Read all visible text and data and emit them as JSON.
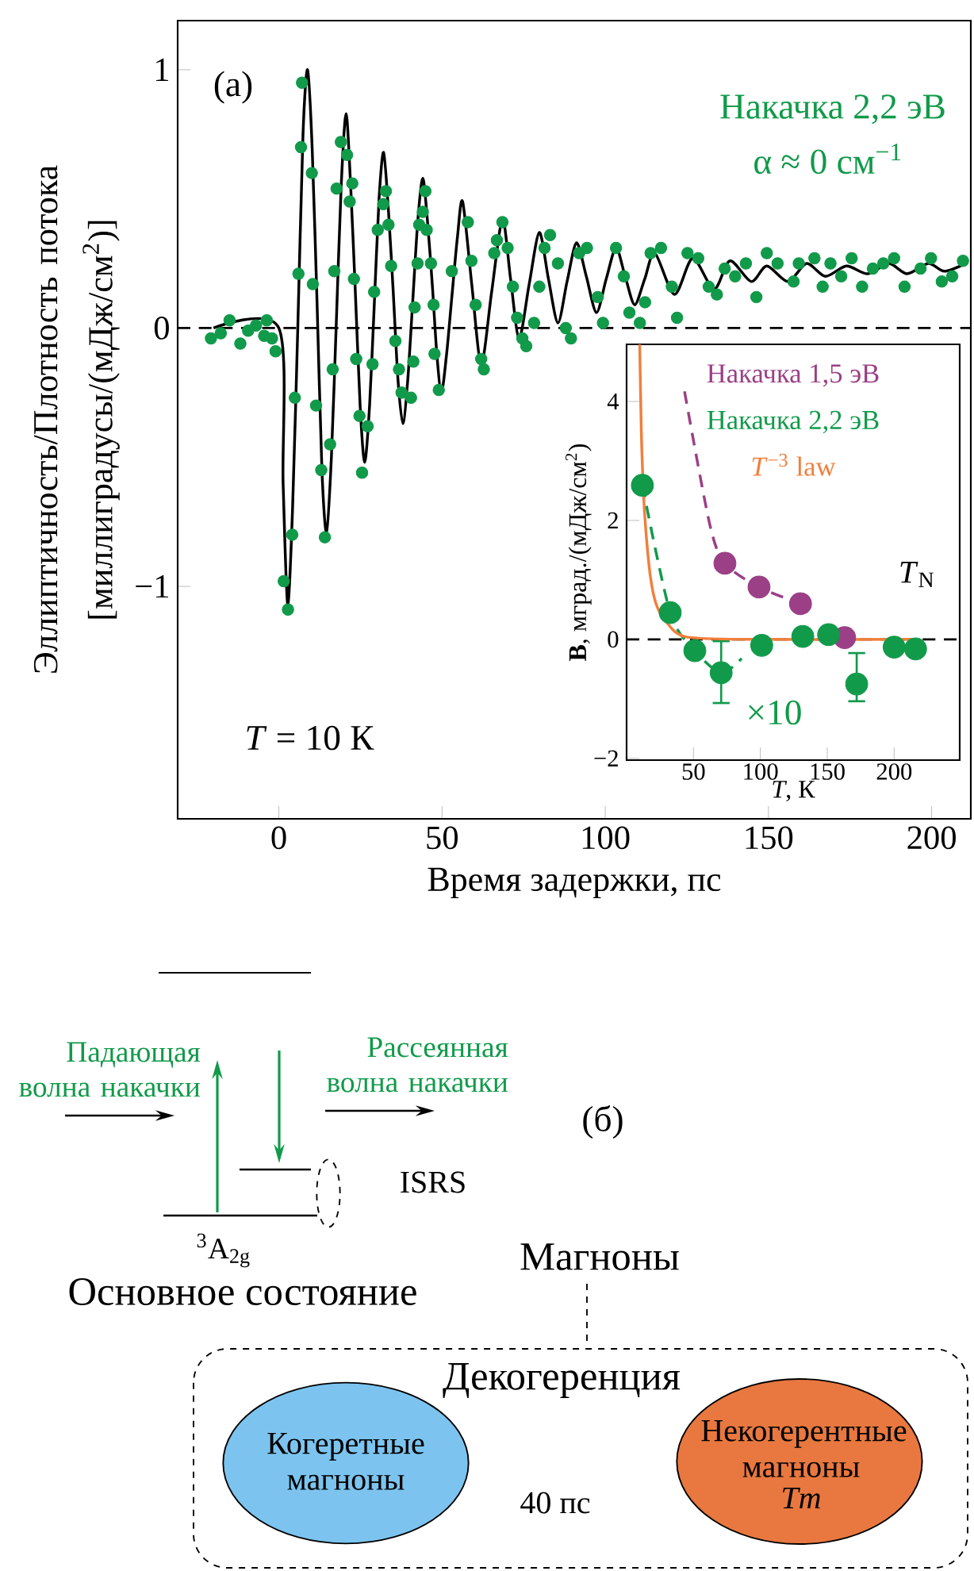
{
  "chart_data": [
    {
      "type": "scatter",
      "xlabel": "Время задержки, пс",
      "ylabel": "Эллиптичность/Плотность потока [миллиградусы/(мДж/см$^{2}$)]",
      "xlim": [
        -31,
        212
      ],
      "ylim": [
        -1.9,
        1.19
      ],
      "xticks": [
        0,
        50,
        100,
        150,
        200
      ],
      "yticks": [
        {
          "value": -1,
          "label": "−1"
        },
        0,
        1
      ],
      "legend": "top right",
      "annotations": [
        "(a)",
        "α ≈ 0 см$^{−1}$",
        "*T* = 10 К"
      ],
      "ref_lines": [
        {
          "axis": "y",
          "value": 0,
          "line_style": "dashed",
          "color": "#000000"
        }
      ],
      "series": [
        {
          "name": "Накачка 2,2 эВ",
          "type": "scatter",
          "marker": "circle",
          "color": "#119a4a",
          "x": [
            -20.8,
            -17.8,
            -15.1,
            -11.8,
            -9.4,
            -7.0,
            -4.5,
            -3.7,
            -2.1,
            -1.0,
            1.5,
            2.8,
            4.1,
            4.9,
            6.0,
            6.8,
            7.1,
            10.1,
            10.4,
            11.4,
            13.0,
            14.1,
            15.7,
            16.5,
            17.0,
            17.7,
            19.0,
            20.9,
            21.7,
            22.5,
            23.0,
            23.7,
            24.7,
            25.5,
            27.2,
            28.7,
            29.2,
            30.3,
            32.0,
            32.8,
            33.6,
            34.4,
            35.7,
            36.8,
            37.6,
            40.5,
            41.2,
            41.6,
            42.5,
            43.0,
            44.1,
            44.9,
            45.3,
            46.6,
            47.4,
            47.7,
            49.0,
            53.0,
            57.9,
            59.0,
            60.3,
            62.0,
            62.8,
            66.0,
            66.8,
            68.5,
            70.1,
            71.7,
            73.0,
            74.6,
            75.8,
            78.2,
            79.8,
            81.4,
            83.1,
            85.5,
            87.9,
            89.5,
            92.0,
            94.4,
            97.7,
            99.3,
            103.3,
            105.7,
            107.4,
            110.6,
            112.2,
            113.9,
            117.1,
            120.4,
            122.0,
            125.2,
            128.5,
            131.7,
            134.2,
            136.6,
            139.8,
            143.1,
            146.3,
            149.5,
            152.8,
            157.7,
            159.3,
            164.1,
            166.6,
            169.0,
            172.3,
            175.5,
            178.7,
            182.0,
            185.2,
            188.5,
            191.7,
            196.6,
            199.8,
            203.1,
            206.3,
            209.6
          ],
          "values": [
            -0.04,
            -0.02,
            0.03,
            -0.06,
            -0.01,
            0.01,
            -0.03,
            0.03,
            -0.04,
            -0.09,
            -0.98,
            -1.09,
            -0.8,
            -0.27,
            0.21,
            0.7,
            0.95,
            0.6,
            0.17,
            -0.3,
            -0.55,
            -0.81,
            -0.45,
            -0.16,
            0.22,
            0.54,
            0.72,
            0.67,
            0.49,
            0.56,
            0.19,
            -0.12,
            -0.34,
            -0.56,
            -0.38,
            -0.14,
            0.14,
            0.38,
            0.48,
            0.53,
            0.4,
            0.24,
            -0.05,
            -0.16,
            -0.25,
            -0.27,
            -0.13,
            0.08,
            0.25,
            0.4,
            0.45,
            0.53,
            0.38,
            0.25,
            0.09,
            -0.1,
            -0.24,
            0.22,
            0.41,
            0.26,
            0.09,
            -0.12,
            -0.16,
            0.29,
            0.34,
            0.41,
            0.31,
            0.16,
            0.04,
            -0.04,
            -0.07,
            0.02,
            0.16,
            0.31,
            0.36,
            0.25,
            0.0,
            -0.04,
            0.29,
            0.31,
            0.12,
            0.02,
            0.31,
            0.2,
            0.06,
            0.02,
            0.1,
            0.29,
            0.31,
            0.16,
            0.04,
            0.29,
            0.27,
            0.16,
            0.13,
            0.23,
            0.2,
            0.25,
            0.12,
            0.29,
            0.25,
            0.18,
            0.25,
            0.27,
            0.16,
            0.25,
            0.2,
            0.27,
            0.16,
            0.23,
            0.25,
            0.27,
            0.16,
            0.23,
            0.27,
            0.18,
            0.2,
            0.26
          ]
        },
        {
          "type": "line",
          "line_style": "solid",
          "color": "#000000",
          "x": [
            -20,
            0,
            1.3,
            2.7,
            4.2,
            5.8,
            7.4,
            8.8,
            10.2,
            11.7,
            13.2,
            14.6,
            16.1,
            17.6,
            19.1,
            20.6,
            22.0,
            23.4,
            24.9,
            26.3,
            27.8,
            29.2,
            30.7,
            32.1,
            33.6,
            35.0,
            36.5,
            38,
            39.5,
            41,
            42.6,
            44.1,
            45.5,
            47,
            48.4,
            49.8,
            51.4,
            53,
            54.7,
            56.3,
            59.1,
            62,
            65.2,
            68.5,
            71,
            73.6,
            76.7,
            79.8,
            82.6,
            85.5,
            88.3,
            91.2,
            94.2,
            97.3,
            100.3,
            103.3,
            106.1,
            109,
            112.1,
            115.2,
            121.2,
            126.8,
            133.3,
            138.2,
            144.7,
            149.5,
            156,
            161.7,
            167.4,
            173.9,
            180.4,
            186.9,
            192.5,
            199,
            203.9,
            210.4
          ],
          "values": [
            0,
            0,
            -0.6,
            -1.07,
            -0.7,
            0.0,
            0.75,
            1.0,
            0.7,
            0.1,
            -0.55,
            -0.79,
            -0.5,
            0.02,
            0.55,
            0.83,
            0.55,
            0.15,
            -0.3,
            -0.52,
            -0.3,
            0.08,
            0.5,
            0.68,
            0.45,
            0.15,
            -0.2,
            -0.37,
            -0.2,
            0.1,
            0.42,
            0.58,
            0.42,
            0.17,
            -0.1,
            -0.25,
            -0.1,
            0.12,
            0.35,
            0.49,
            0.17,
            -0.14,
            0.14,
            0.42,
            0.19,
            -0.04,
            0.17,
            0.37,
            0.19,
            0.02,
            0.18,
            0.33,
            0.2,
            0.06,
            0.19,
            0.31,
            0.2,
            0.09,
            0.19,
            0.29,
            0.13,
            0.27,
            0.15,
            0.26,
            0.18,
            0.24,
            0.18,
            0.25,
            0.2,
            0.24,
            0.21,
            0.25,
            0.21,
            0.25,
            0.22,
            0.25
          ]
        }
      ]
    },
    {
      "type": "scatter",
      "xlabel": "*T*, К",
      "ylabel": "**B**, мград./(мДж/см$^{2}$)",
      "xlim": [
        0,
        249
      ],
      "ylim": [
        -2.03,
        4.96
      ],
      "xticks": [
        50,
        100,
        150,
        200
      ],
      "yticks": [
        {
          "value": -2,
          "label": "−2"
        },
        0,
        2,
        4
      ],
      "legend": "top right",
      "annotations": [
        "*T*$_{N}$",
        "×10"
      ],
      "ref_lines": [
        {
          "axis": "y",
          "value": 0,
          "line_style": "dashed",
          "color": "#000000"
        }
      ],
      "series": [
        {
          "type": "line",
          "line_style": "dashed",
          "color": "#9b3f86",
          "x": [
            43.3,
            62,
            73.5,
            99,
            130
          ],
          "values": [
            4.17,
            1.95,
            1.28,
            0.88,
            0.6
          ]
        },
        {
          "name": "Накачка 1,5 эВ",
          "type": "scatter",
          "marker": "circle",
          "color": "#9b3f86",
          "x": [
            73.5,
            99,
            130,
            163
          ],
          "values": [
            1.28,
            0.88,
            0.6,
            0.03
          ]
        },
        {
          "type": "line",
          "line_style": "dashed",
          "color": "#119a4a",
          "x": [
            11.8,
            32.6,
            51,
            70.7,
            86
          ],
          "values": [
            2.59,
            0.45,
            -0.19,
            -0.56,
            -0.32
          ]
        },
        {
          "name": "Накачка 2,2 эВ",
          "type": "scatter",
          "marker": "circle",
          "color": "#119a4a",
          "x": [
            11.8,
            32.6,
            51,
            70.7,
            101,
            131.7,
            151,
            172,
            200,
            216
          ],
          "values": [
            2.59,
            0.45,
            -0.19,
            -0.56,
            -0.1,
            0.05,
            0.08,
            -0.75,
            -0.13,
            -0.16
          ],
          "errors": [
            null,
            null,
            null,
            [
              -1.07,
              -0.03
            ],
            null,
            null,
            null,
            [
              -1.04,
              -0.23
            ],
            null,
            null
          ]
        },
        {
          "name": "*T*$^{−3}$ law",
          "type": "line",
          "line_style": "solid",
          "color": "#f07f3c",
          "x": [
            9.8,
            11,
            12.5,
            14.5,
            17.7,
            22,
            29.5,
            45,
            100,
            216
          ],
          "values": [
            4.96,
            3.5,
            2.5,
            1.8,
            1.07,
            0.6,
            0.3,
            0.04,
            0,
            0
          ]
        }
      ]
    },
    {
      "type": "other",
      "annotations": [
        "Падающая волна накачки",
        "Рассеянная волна накачки",
        "(б)",
        "ISRS",
        "$^{3}$A$_{2g}$",
        "Основное состояние",
        "Магноны",
        "Декогеренция",
        "Когеретные магноны",
        "40 пс",
        "Некогерентные магноны",
        "Tm"
      ]
    }
  ]
}
